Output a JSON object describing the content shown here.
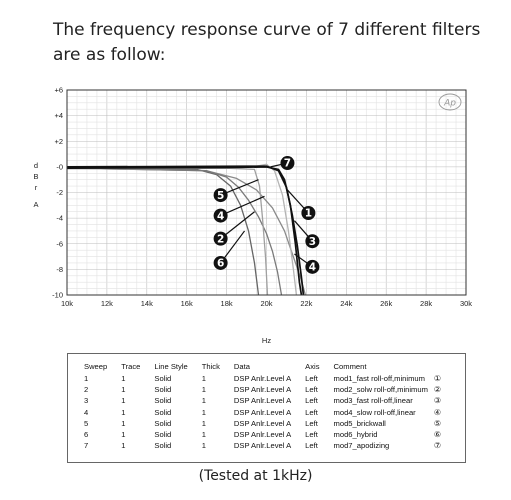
{
  "intro_text": "The frequency response curve of 7 different filters are as follow:",
  "footer_text": "(Tested at 1kHz)",
  "chart_data": {
    "type": "line",
    "logo": "Ap",
    "xlabel": "Hz",
    "ylabel": "d B r A",
    "xlim": [
      10000,
      30000
    ],
    "ylim": [
      -10,
      6
    ],
    "grid": true,
    "x_ticks": [
      "10k",
      "12k",
      "14k",
      "16k",
      "18k",
      "20k",
      "22k",
      "24k",
      "26k",
      "28k",
      "30k"
    ],
    "y_ticks": [
      "+6",
      "+4",
      "+2",
      "-0",
      "-2",
      "-4",
      "-6",
      "-8",
      "-10"
    ],
    "series": [
      {
        "name": "1",
        "color": "#111111",
        "points": [
          [
            10000,
            -0.1
          ],
          [
            18000,
            -0.05
          ],
          [
            20000,
            0.0
          ],
          [
            20600,
            -0.2
          ],
          [
            20900,
            -1.0
          ],
          [
            21200,
            -3.0
          ],
          [
            21450,
            -6.0
          ],
          [
            21650,
            -9.0
          ],
          [
            21750,
            -10.0
          ]
        ]
      },
      {
        "name": "2",
        "color": "#7a7a7a",
        "points": [
          [
            10000,
            -0.1
          ],
          [
            17000,
            -0.3
          ],
          [
            18000,
            -0.8
          ],
          [
            18600,
            -1.6
          ],
          [
            19100,
            -2.6
          ],
          [
            19600,
            -3.9
          ],
          [
            20000,
            -5.2
          ],
          [
            20300,
            -6.6
          ],
          [
            20550,
            -8.2
          ],
          [
            20750,
            -10.0
          ]
        ]
      },
      {
        "name": "3",
        "color": "#111111",
        "points": [
          [
            10000,
            0.0
          ],
          [
            19000,
            0.05
          ],
          [
            20000,
            0.05
          ],
          [
            20600,
            -0.3
          ],
          [
            21000,
            -1.6
          ],
          [
            21300,
            -3.8
          ],
          [
            21550,
            -6.2
          ],
          [
            21750,
            -8.6
          ],
          [
            21850,
            -10.0
          ]
        ]
      },
      {
        "name": "4",
        "color": "#8a8a8a",
        "points": [
          [
            10000,
            -0.1
          ],
          [
            17000,
            -0.3
          ],
          [
            18500,
            -0.9
          ],
          [
            19500,
            -1.8
          ],
          [
            20300,
            -3.2
          ],
          [
            20900,
            -5.0
          ],
          [
            21300,
            -6.8
          ],
          [
            21700,
            -8.6
          ],
          [
            21950,
            -10.0
          ]
        ]
      },
      {
        "name": "5",
        "color": "#a0a0a0",
        "points": [
          [
            10000,
            -0.1
          ],
          [
            18000,
            -0.1
          ],
          [
            19400,
            -0.2
          ],
          [
            19650,
            -1.5
          ],
          [
            19800,
            -4.0
          ],
          [
            19950,
            -7.0
          ],
          [
            20050,
            -10.0
          ]
        ]
      },
      {
        "name": "6",
        "color": "#666666",
        "points": [
          [
            10000,
            -0.1
          ],
          [
            16500,
            -0.2
          ],
          [
            17500,
            -0.6
          ],
          [
            18200,
            -1.5
          ],
          [
            18700,
            -3.0
          ],
          [
            19100,
            -5.0
          ],
          [
            19400,
            -7.5
          ],
          [
            19600,
            -10.0
          ]
        ]
      },
      {
        "name": "7",
        "color": "#b4b4b4",
        "points": [
          [
            10000,
            -0.15
          ],
          [
            18500,
            -0.1
          ],
          [
            19500,
            0.05
          ],
          [
            20000,
            0.2
          ],
          [
            20400,
            -0.3
          ],
          [
            20800,
            -2.2
          ],
          [
            21100,
            -5.0
          ],
          [
            21350,
            -8.0
          ],
          [
            21500,
            -10.0
          ]
        ]
      }
    ],
    "markers": [
      {
        "label": "7",
        "x": 21050,
        "y": 0.3,
        "target": [
          20200,
          0.0
        ]
      },
      {
        "label": "5",
        "x": 17700,
        "y": -2.2,
        "target": [
          19600,
          -1.0
        ]
      },
      {
        "label": "1",
        "x": 22100,
        "y": -3.6,
        "target": [
          21050,
          -1.8
        ]
      },
      {
        "label": "4",
        "x": 17700,
        "y": -3.8,
        "target": [
          19900,
          -2.3
        ]
      },
      {
        "label": "2",
        "x": 17700,
        "y": -5.6,
        "target": [
          19400,
          -3.5
        ]
      },
      {
        "label": "3",
        "x": 22300,
        "y": -5.8,
        "target": [
          21400,
          -4.2
        ]
      },
      {
        "label": "6",
        "x": 17700,
        "y": -7.5,
        "target": [
          18900,
          -5.0
        ]
      },
      {
        "label": "4",
        "x": 22300,
        "y": -7.8,
        "target": [
          21400,
          -6.8
        ]
      }
    ]
  },
  "legend_table": {
    "headers": [
      "Sweep",
      "Trace",
      "Line Style",
      "Thick",
      "Data",
      "Axis",
      "Comment"
    ],
    "rows": [
      [
        "1",
        "1",
        "Solid",
        "1",
        "DSP Anlr.Level A",
        "Left",
        "mod1_fast roll-off,minimum",
        "①"
      ],
      [
        "2",
        "1",
        "Solid",
        "1",
        "DSP Anlr.Level A",
        "Left",
        "mod2_solw roll-off,minimum",
        "②"
      ],
      [
        "3",
        "1",
        "Solid",
        "1",
        "DSP Anlr.Level A",
        "Left",
        "mod3_fast roll-off,linear",
        "③"
      ],
      [
        "4",
        "1",
        "Solid",
        "1",
        "DSP Anlr.Level A",
        "Left",
        "mod4_slow roll-off,linear",
        "④"
      ],
      [
        "5",
        "1",
        "Solid",
        "1",
        "DSP Anlr.Level A",
        "Left",
        "mod5_brickwall",
        "⑤"
      ],
      [
        "6",
        "1",
        "Solid",
        "1",
        "DSP Anlr.Level A",
        "Left",
        "mod6_hybrid",
        "⑥"
      ],
      [
        "7",
        "1",
        "Solid",
        "1",
        "DSP Anlr.Level A",
        "Left",
        "mod7_apodizing",
        "⑦"
      ]
    ]
  }
}
